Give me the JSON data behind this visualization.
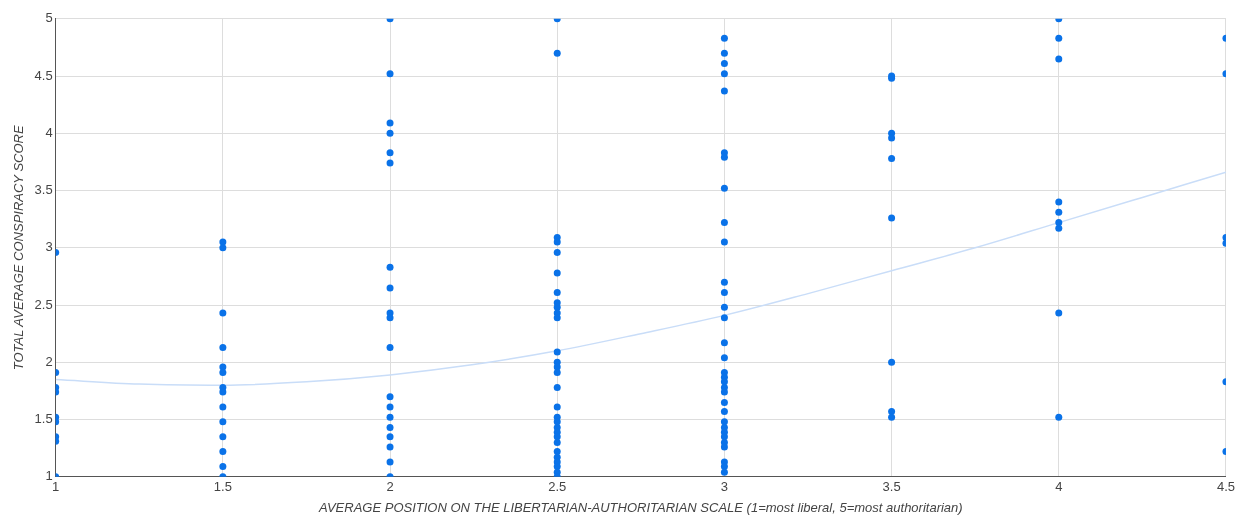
{
  "chart_data": {
    "type": "scatter",
    "xlabel": "AVERAGE POSITION ON THE LIBERTARIAN-AUTHORITARIAN SCALE (1=most liberal, 5=most authoritarian)",
    "ylabel": "TOTAL AVERAGE CONSPIRACY SCORE",
    "xlim": [
      1,
      4.5
    ],
    "xticks": [
      1,
      1.5,
      2,
      2.5,
      3,
      3.5,
      4,
      4.5
    ],
    "ylim": [
      1,
      5
    ],
    "yticks": [
      1,
      1.5,
      2,
      2.5,
      3,
      3.5,
      4,
      4.5,
      5
    ],
    "grid": true,
    "legend": false,
    "marker": "circle",
    "series": [
      {
        "color": "#0a72e8",
        "x": [
          1,
          1,
          1,
          1,
          1,
          1,
          1,
          1,
          1,
          1.5,
          1.5,
          1.5,
          1.5,
          1.5,
          1.5,
          1.5,
          1.5,
          1.5,
          1.5,
          1.5,
          1.5,
          1.5,
          1.5,
          2,
          2,
          2,
          2,
          2,
          2,
          2,
          2,
          2,
          2,
          2,
          2,
          2,
          2,
          2,
          2,
          2,
          2,
          2,
          2.5,
          2.5,
          2.5,
          2.5,
          2.5,
          2.5,
          2.5,
          2.5,
          2.5,
          2.5,
          2.5,
          2.5,
          2.5,
          2.5,
          2.5,
          2.5,
          2.5,
          2.5,
          2.5,
          2.5,
          2.5,
          2.5,
          2.5,
          2.5,
          2.5,
          2.5,
          2.5,
          2.5,
          2.5,
          3,
          3,
          3,
          3,
          3,
          3,
          3,
          3,
          3,
          3,
          3,
          3,
          3,
          3,
          3,
          3,
          3,
          3,
          3,
          3,
          3,
          3,
          3,
          3,
          3,
          3,
          3,
          3,
          3,
          3,
          3,
          3,
          3.5,
          3.5,
          3.5,
          3.5,
          3.5,
          3.5,
          3.5,
          3.5,
          3.5,
          4,
          4,
          4,
          4,
          4,
          4,
          4,
          4,
          4,
          4.5,
          4.5,
          4.5,
          4.5,
          4.5,
          4.5
        ],
        "values": [
          2.96,
          1.91,
          1.78,
          1.74,
          1.52,
          1.48,
          1.35,
          1.31,
          1.0,
          3.05,
          3.0,
          2.43,
          2.13,
          1.96,
          1.91,
          1.78,
          1.74,
          1.61,
          1.48,
          1.35,
          1.22,
          1.09,
          1.0,
          5,
          4.52,
          4.09,
          4.0,
          3.83,
          3.74,
          2.83,
          2.65,
          2.43,
          2.39,
          2.13,
          1.7,
          1.61,
          1.52,
          1.43,
          1.35,
          1.26,
          1.13,
          1.0,
          5,
          4.7,
          3.09,
          3.05,
          2.96,
          2.78,
          2.61,
          2.52,
          2.48,
          2.43,
          2.39,
          2.09,
          2.0,
          1.96,
          1.91,
          1.78,
          1.61,
          1.52,
          1.48,
          1.43,
          1.39,
          1.35,
          1.3,
          1.22,
          1.17,
          1.13,
          1.09,
          1.04,
          1.0,
          4.83,
          4.7,
          4.61,
          4.52,
          4.37,
          3.83,
          3.79,
          3.52,
          3.22,
          3.05,
          2.7,
          2.61,
          2.48,
          2.39,
          2.17,
          2.04,
          1.91,
          1.87,
          1.83,
          1.78,
          1.74,
          1.65,
          1.57,
          1.48,
          1.43,
          1.39,
          1.35,
          1.3,
          1.26,
          1.13,
          1.09,
          1.04,
          4.5,
          4.48,
          4.0,
          3.96,
          3.78,
          3.26,
          2.0,
          1.57,
          1.52,
          5,
          4.83,
          4.65,
          3.4,
          3.31,
          3.22,
          3.17,
          2.43,
          1.52,
          4.83,
          4.52,
          3.09,
          3.04,
          1.83,
          1.22
        ]
      },
      {
        "type": "line",
        "color": "#c9ddf8",
        "marker": "none",
        "x": [
          1,
          1.25,
          1.5,
          1.75,
          2,
          2.25,
          2.5,
          2.75,
          3,
          3.25,
          3.5,
          3.75,
          4,
          4.25,
          4.5
        ],
        "values": [
          1.85,
          1.81,
          1.8,
          1.83,
          1.89,
          1.98,
          2.1,
          2.25,
          2.41,
          2.6,
          2.8,
          3.0,
          3.22,
          3.44,
          3.66
        ]
      }
    ]
  }
}
